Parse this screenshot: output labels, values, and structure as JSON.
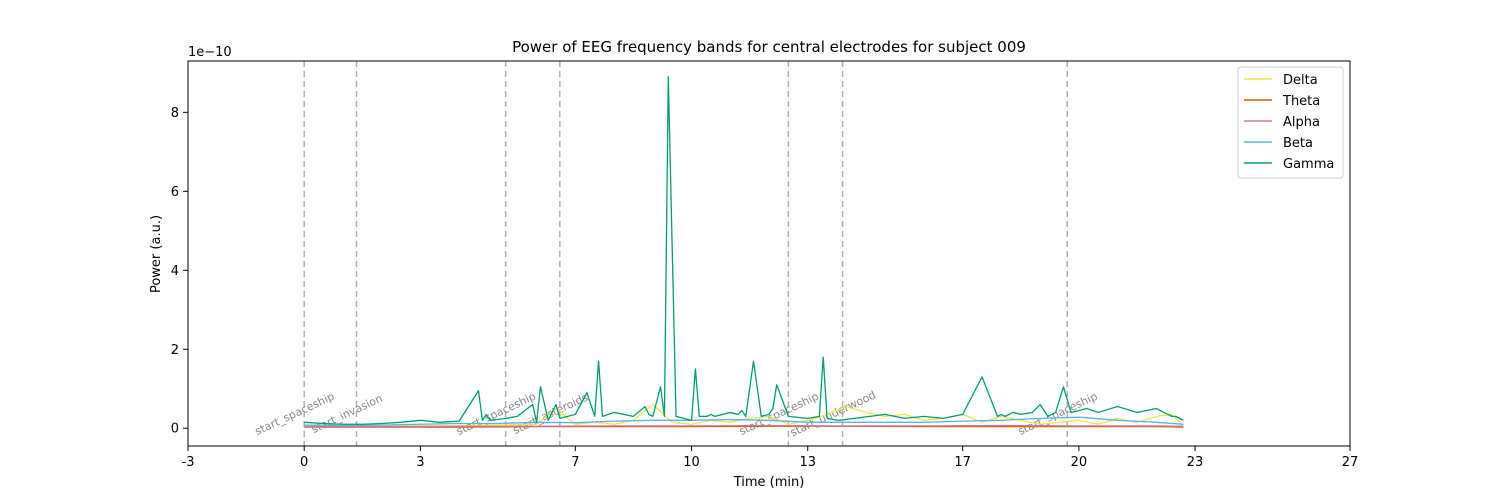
{
  "chart_data": {
    "type": "line",
    "title": "Power of EEG frequency bands for central electrodes for subject 009",
    "xlabel": "Time (min)",
    "ylabel": "Power (a.u.)",
    "y_scale_label": "1e−10",
    "y_multiplier": 1e-10,
    "xlim": [
      -3,
      27
    ],
    "ylim": [
      -0.45,
      9.3
    ],
    "x_ticks": [
      -3,
      0,
      3,
      7,
      10,
      13,
      17,
      20,
      23,
      27
    ],
    "y_ticks": [
      0,
      2,
      4,
      6,
      8
    ],
    "grid": false,
    "legend_position": "top-right",
    "events": [
      {
        "label": "start_spaceship",
        "x": 0.0
      },
      {
        "label": "start_invasion",
        "x": 1.35
      },
      {
        "label": "start_spaceship",
        "x": 5.2
      },
      {
        "label": "start_asteroids",
        "x": 6.6
      },
      {
        "label": "start_spaceship",
        "x": 12.5
      },
      {
        "label": "start_underwood",
        "x": 13.9
      },
      {
        "label": "start_spaceship",
        "x": 19.7
      }
    ],
    "series": [
      {
        "name": "Delta",
        "color": "#f0e442",
        "x": [
          0,
          1,
          2,
          3,
          4,
          5,
          6,
          6.5,
          7,
          7.5,
          8,
          8.5,
          9,
          9.5,
          10,
          10.5,
          11,
          11.5,
          12,
          12.5,
          13,
          13.5,
          14,
          14.5,
          15,
          15.5,
          16,
          16.5,
          17,
          17.5,
          18,
          18.5,
          19,
          19.5,
          20,
          20.5,
          21,
          21.5,
          22,
          22.4,
          22.7
        ],
        "values": [
          0.05,
          0.05,
          0.05,
          0.06,
          0.06,
          0.08,
          0.1,
          0.5,
          0.1,
          0.15,
          0.1,
          0.2,
          0.6,
          0.15,
          0.1,
          0.2,
          0.15,
          0.25,
          0.3,
          0.1,
          0.2,
          0.35,
          0.55,
          0.4,
          0.3,
          0.35,
          0.2,
          0.25,
          0.35,
          0.15,
          0.3,
          0.2,
          0.1,
          0.15,
          0.2,
          0.1,
          0.25,
          0.15,
          0.3,
          0.35,
          0.05
        ]
      },
      {
        "name": "Theta",
        "color": "#d55e00",
        "x": [
          0,
          2,
          4,
          6,
          8,
          10,
          12,
          14,
          16,
          18,
          20,
          22,
          22.7
        ],
        "values": [
          0.03,
          0.03,
          0.03,
          0.04,
          0.04,
          0.04,
          0.05,
          0.05,
          0.04,
          0.04,
          0.04,
          0.04,
          0.03
        ]
      },
      {
        "name": "Alpha",
        "color": "#cc79a7",
        "x": [
          0,
          2,
          4,
          6,
          8,
          10,
          12,
          14,
          16,
          18,
          20,
          22,
          22.7
        ],
        "values": [
          0.04,
          0.04,
          0.05,
          0.05,
          0.06,
          0.06,
          0.07,
          0.06,
          0.06,
          0.07,
          0.06,
          0.06,
          0.05
        ]
      },
      {
        "name": "Beta",
        "color": "#56b4e9",
        "x": [
          0,
          1,
          2,
          3,
          4,
          5,
          6,
          7,
          8,
          9,
          10,
          11,
          12,
          13,
          14,
          15,
          16,
          17,
          18,
          19,
          20,
          21,
          22,
          22.7
        ],
        "values": [
          0.08,
          0.07,
          0.08,
          0.1,
          0.12,
          0.12,
          0.15,
          0.14,
          0.18,
          0.2,
          0.2,
          0.22,
          0.2,
          0.15,
          0.15,
          0.15,
          0.15,
          0.18,
          0.2,
          0.25,
          0.28,
          0.2,
          0.15,
          0.1
        ]
      },
      {
        "name": "Gamma",
        "color": "#009e73",
        "x": [
          0,
          0.5,
          1.0,
          1.5,
          2.0,
          2.5,
          3.0,
          3.5,
          4.0,
          4.5,
          4.6,
          4.7,
          4.8,
          5.0,
          5.2,
          5.5,
          5.9,
          6.0,
          6.1,
          6.3,
          6.5,
          6.6,
          6.8,
          7.0,
          7.3,
          7.5,
          7.6,
          7.7,
          8.0,
          8.5,
          8.8,
          8.9,
          9.0,
          9.2,
          9.3,
          9.4,
          9.6,
          10.0,
          10.1,
          10.2,
          10.4,
          10.5,
          10.6,
          11.0,
          11.2,
          11.3,
          11.4,
          11.6,
          11.8,
          12.0,
          12.1,
          12.2,
          12.5,
          13.0,
          13.3,
          13.4,
          13.5,
          13.8,
          14.2,
          14.6,
          15.0,
          15.5,
          16.0,
          16.5,
          17.0,
          17.5,
          17.9,
          18.0,
          18.1,
          18.3,
          18.5,
          18.8,
          19.0,
          19.2,
          19.4,
          19.6,
          19.8,
          20.0,
          20.2,
          20.5,
          21.0,
          21.5,
          22.0,
          22.3,
          22.4,
          22.5,
          22.6,
          22.7
        ],
        "values": [
          0.15,
          0.12,
          0.1,
          0.1,
          0.12,
          0.15,
          0.2,
          0.15,
          0.18,
          0.95,
          0.2,
          0.35,
          0.2,
          0.22,
          0.25,
          0.3,
          0.6,
          0.15,
          1.05,
          0.2,
          0.6,
          0.25,
          0.3,
          0.35,
          0.9,
          0.3,
          1.7,
          0.3,
          0.4,
          0.3,
          0.55,
          0.35,
          0.3,
          1.05,
          0.3,
          8.9,
          0.3,
          0.2,
          1.5,
          0.3,
          0.3,
          0.35,
          0.3,
          0.4,
          0.35,
          0.45,
          0.3,
          1.7,
          0.3,
          0.35,
          0.5,
          1.1,
          0.3,
          0.25,
          0.3,
          1.8,
          0.25,
          0.2,
          0.25,
          0.3,
          0.35,
          0.25,
          0.3,
          0.25,
          0.35,
          1.3,
          0.3,
          0.35,
          0.3,
          0.4,
          0.35,
          0.4,
          0.6,
          0.3,
          0.4,
          1.05,
          0.4,
          0.45,
          0.5,
          0.4,
          0.55,
          0.4,
          0.5,
          0.35,
          0.3,
          0.3,
          0.25,
          0.2
        ]
      }
    ]
  }
}
